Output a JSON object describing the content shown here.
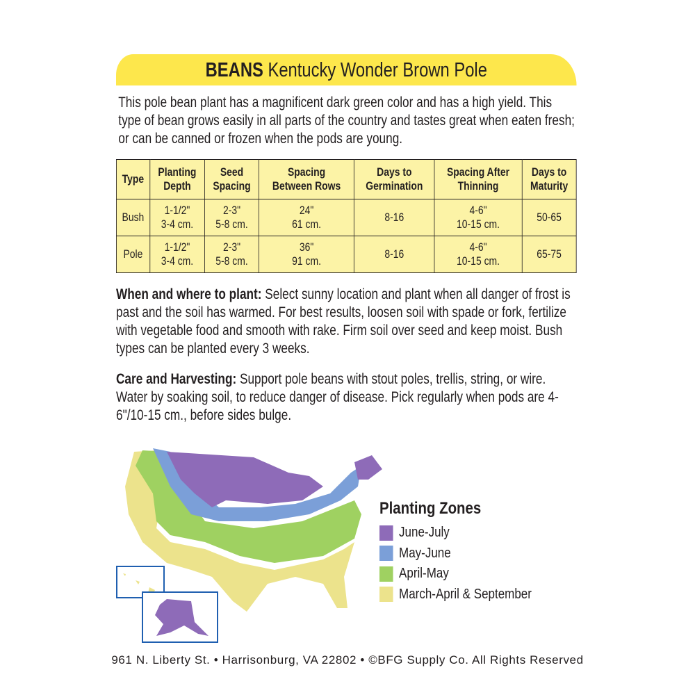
{
  "title": {
    "bold": "BEANS",
    "rest": " Kentucky Wonder Brown Pole"
  },
  "intro": "This pole bean plant has a magnificent dark green color and has a high yield.  This type of bean grows easily in all parts of the country and tastes great when eaten fresh; or can be canned or frozen when the pods are young.",
  "table": {
    "headers": [
      [
        "Type",
        ""
      ],
      [
        "Planting",
        "Depth"
      ],
      [
        "Seed",
        "Spacing"
      ],
      [
        "Spacing",
        "Between Rows"
      ],
      [
        "Days to",
        "Germination"
      ],
      [
        "Spacing After",
        "Thinning"
      ],
      [
        "Days to",
        "Maturity"
      ]
    ],
    "rows": [
      [
        [
          "Bush",
          ""
        ],
        [
          "1-1/2\"",
          "3-4 cm."
        ],
        [
          "2-3\"",
          "5-8 cm."
        ],
        [
          "24\"",
          "61 cm."
        ],
        [
          "8-16",
          ""
        ],
        [
          "4-6\"",
          "10-15 cm."
        ],
        [
          "50-65",
          ""
        ]
      ],
      [
        [
          "Pole",
          ""
        ],
        [
          "1-1/2\"",
          "3-4 cm."
        ],
        [
          "2-3\"",
          "5-8 cm."
        ],
        [
          "36\"",
          "91 cm."
        ],
        [
          "8-16",
          ""
        ],
        [
          "4-6\"",
          "10-15 cm."
        ],
        [
          "65-75",
          ""
        ]
      ]
    ]
  },
  "planting": {
    "heading": "When and where to plant:",
    "text": " Select sunny location and plant when all danger of frost is past and the soil has warmed. For best results, loosen soil with spade or fork, fertilize with vegetable food and smooth with rake. Firm soil over seed and keep moist. Bush types can be planted every 3 weeks."
  },
  "care": {
    "heading": "Care and Harvesting:",
    "text": " Support pole beans with stout poles, trellis, string, or wire. Water by soaking soil, to reduce danger of disease. Pick regularly when pods are 4-6\"/10-15 cm., before sides bulge."
  },
  "legend": {
    "title": "Planting Zones",
    "items": [
      {
        "label": "June-July",
        "color": "#8e6bb8"
      },
      {
        "label": "May-June",
        "color": "#7b9fd8"
      },
      {
        "label": "April-May",
        "color": "#9fd161"
      },
      {
        "label": "March-April & September",
        "color": "#ece38c"
      }
    ]
  },
  "footer": "961 N. Liberty St. • Harrisonburg, VA 22802 • ©BFG Supply Co. All Rights Reserved"
}
